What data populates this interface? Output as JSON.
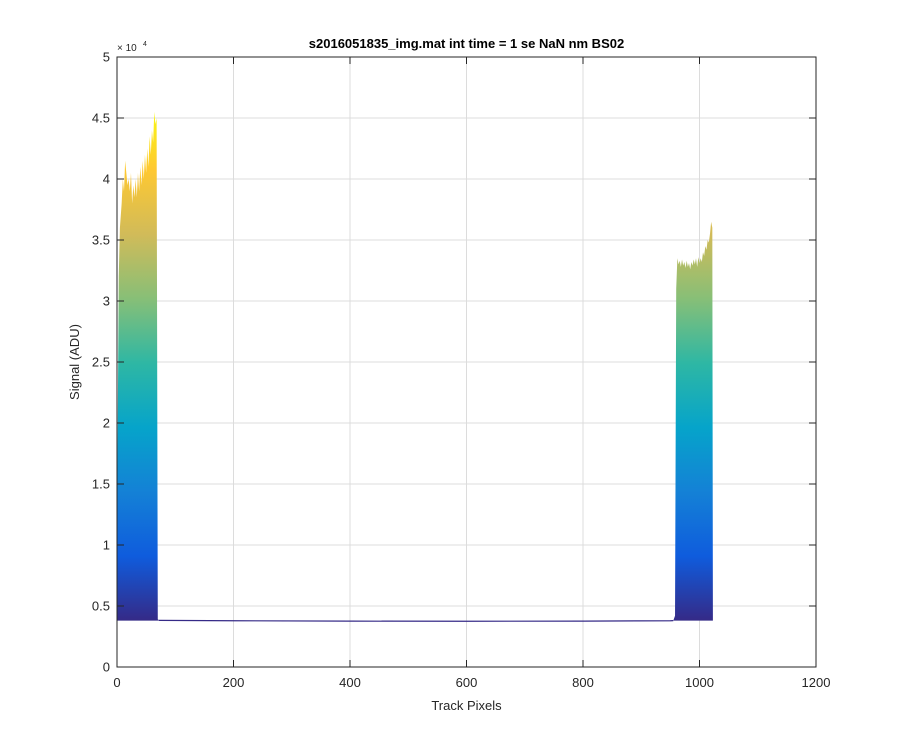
{
  "chart_data": {
    "type": "area",
    "title": "s2016051835_img.mat int time = 1 se  NaN nm BS02",
    "xlabel": "Track Pixels",
    "ylabel": "Signal (ADU)",
    "xlim": [
      0,
      1200
    ],
    "ylim": [
      0,
      50000
    ],
    "xticks": [
      0,
      200,
      400,
      600,
      800,
      1000,
      1200
    ],
    "yticks": [
      0,
      5000,
      10000,
      15000,
      20000,
      25000,
      30000,
      35000,
      40000,
      45000,
      50000
    ],
    "xtick_labels": [
      "0",
      "200",
      "400",
      "600",
      "800",
      "1000",
      "1200"
    ],
    "ytick_labels": [
      "0",
      "0.5",
      "1",
      "1.5",
      "2",
      "2.5",
      "3",
      "3.5",
      "4",
      "4.5",
      "5"
    ],
    "y_exponent_base": "× 10",
    "y_exponent_power": "4",
    "grid": true,
    "colormap": [
      "#352a87",
      "#0f5cdd",
      "#1481d6",
      "#06a4ca",
      "#2eb7a4",
      "#87bf77",
      "#d1bb59",
      "#fec832",
      "#f9fb0e"
    ],
    "baseline": 3800,
    "series": [
      {
        "x": [
          0,
          1,
          3,
          5,
          8,
          10,
          12,
          14,
          16,
          18,
          20,
          22,
          24,
          26,
          28,
          30,
          32,
          34,
          36,
          38,
          40,
          42,
          44,
          46,
          48,
          50,
          52,
          54,
          56,
          58,
          60,
          62,
          64,
          66,
          68,
          70,
          72
        ],
        "y": [
          3800,
          18000,
          32000,
          36000,
          38000,
          40000,
          39000,
          41500,
          40500,
          39500,
          40000,
          39000,
          40500,
          38000,
          39500,
          38500,
          40000,
          38500,
          40500,
          39000,
          41000,
          39500,
          41500,
          40000,
          42000,
          40500,
          42500,
          41000,
          43500,
          42000,
          44000,
          43000,
          45500,
          44500,
          45000,
          3900,
          3850
        ]
      },
      {
        "x": [
          955,
          958,
          960,
          962,
          964,
          966,
          968,
          970,
          972,
          974,
          976,
          978,
          980,
          982,
          984,
          986,
          988,
          990,
          992,
          994,
          996,
          998,
          1000,
          1002,
          1004,
          1006,
          1008,
          1010,
          1012,
          1014,
          1016,
          1018,
          1020,
          1022,
          1023
        ],
        "y": [
          3800,
          4200,
          31000,
          33500,
          33000,
          33300,
          32800,
          33400,
          32900,
          33200,
          32700,
          33300,
          32800,
          33100,
          32600,
          33200,
          32900,
          33400,
          33000,
          33500,
          32800,
          33600,
          33100,
          33500,
          33200,
          34000,
          33700,
          34500,
          34200,
          35000,
          34800,
          35500,
          36500,
          36000,
          3800
        ]
      }
    ],
    "floor": {
      "x": [
        72,
        200,
        400,
        600,
        800,
        950,
        955
      ],
      "y": [
        3820,
        3790,
        3760,
        3750,
        3760,
        3790,
        3800
      ]
    }
  }
}
